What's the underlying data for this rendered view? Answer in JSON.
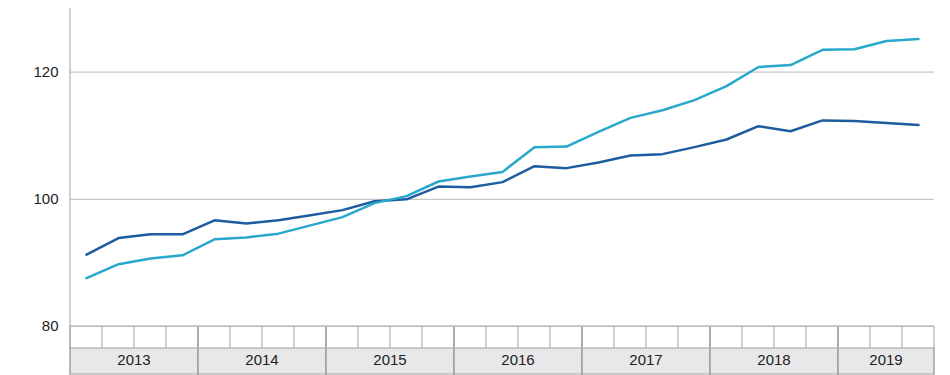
{
  "chart_data": {
    "type": "line",
    "categories": [
      "2013",
      null,
      null,
      null,
      "2014",
      null,
      null,
      null,
      "2015",
      null,
      null,
      null,
      "2016",
      null,
      null,
      null,
      "2017",
      null,
      null,
      null,
      "2018",
      null,
      null,
      null,
      "2019",
      null,
      null
    ],
    "series": [
      {
        "color": "#1d5c9e",
        "values": [
          91.3,
          93.9,
          94.5,
          94.5,
          96.7,
          96.2,
          96.7,
          97.5,
          98.3,
          99.7,
          100.0,
          102.0,
          101.9,
          102.7,
          105.2,
          104.9,
          105.8,
          106.9,
          107.1,
          108.2,
          109.4,
          111.5,
          110.7,
          112.4,
          112.3,
          112.0,
          111.7
        ]
      },
      {
        "color": "#29a8cc",
        "values": [
          87.6,
          89.8,
          90.7,
          91.2,
          93.7,
          94.0,
          94.6,
          95.9,
          97.2,
          99.4,
          100.5,
          102.8,
          103.6,
          104.3,
          108.2,
          108.3,
          110.6,
          112.8,
          114.0,
          115.6,
          117.8,
          120.8,
          121.1,
          123.5,
          123.6,
          124.9,
          125.2
        ]
      }
    ],
    "ylim": [
      80,
      130
    ],
    "yticks": [
      80,
      100,
      120
    ],
    "grid": true
  }
}
